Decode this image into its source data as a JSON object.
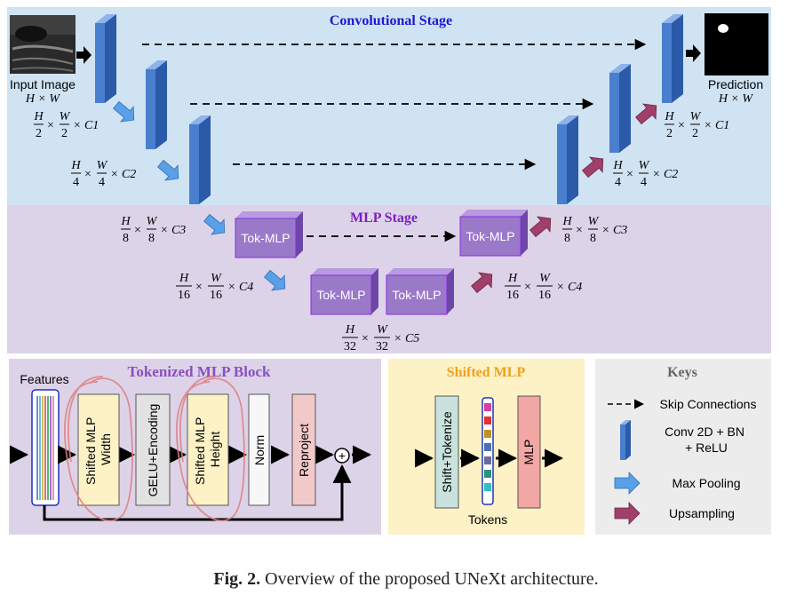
{
  "top": {
    "conv_stage_title": "Convolutional Stage",
    "mlp_stage_title": "MLP Stage",
    "input_label": "Input Image",
    "input_size": "H × W",
    "prediction_label": "Prediction",
    "prediction_size": "H × W",
    "tok_mlp_label": "Tok-MLP",
    "dims": {
      "enc1": [
        "H",
        "2",
        "W",
        "2",
        "× C1"
      ],
      "enc2": [
        "H",
        "4",
        "W",
        "4",
        "× C2"
      ],
      "enc3": [
        "H",
        "8",
        "W",
        "8",
        "× C3"
      ],
      "enc4": [
        "H",
        "16",
        "W",
        "16",
        "× C4"
      ],
      "bottleneck": [
        "H",
        "32",
        "W",
        "32",
        "× C5"
      ],
      "dec4": [
        "H",
        "16",
        "W",
        "16",
        "× C4"
      ],
      "dec3": [
        "H",
        "8",
        "W",
        "8",
        "× C3"
      ],
      "dec2": [
        "H",
        "4",
        "W",
        "4",
        "× C2"
      ],
      "dec1": [
        "H",
        "2",
        "W",
        "2",
        "× C1"
      ]
    }
  },
  "tokenized_block": {
    "title": "Tokenized MLP Block",
    "features_label": "Features",
    "blocks": [
      "Shifted MLP Width",
      "GELU+Encoding",
      "Shifted MLP Height",
      "Norm",
      "Reproject"
    ],
    "blocks_lines": [
      [
        "Shifted MLP",
        "Width"
      ],
      [
        "GELU+Encoding"
      ],
      [
        "Shifted MLP",
        "Height"
      ],
      [
        "Norm"
      ],
      [
        "Reproject"
      ]
    ],
    "sum_symbol": "+"
  },
  "shifted_mlp": {
    "title": "Shifted MLP",
    "shift_tokenize": "Shift+Tokenize",
    "mlp": "MLP",
    "tokens_label": "Tokens",
    "token_colors": [
      "#d63fa0",
      "#e03030",
      "#c09020",
      "#4a6fb5",
      "#6a6a9a",
      "#2f8f7f",
      "#2fc0c0"
    ]
  },
  "keys": {
    "title": "Keys",
    "skip": "Skip Connections",
    "conv": "Conv 2D + BN + ReLU",
    "conv_lines": [
      "Conv 2D + BN",
      "+ ReLU"
    ],
    "pool": "Max Pooling",
    "up": "Upsampling"
  },
  "caption": {
    "fig": "Fig. 2.",
    "text": "Overview of the proposed UNeXt architecture."
  },
  "colors": {
    "conv_bg": "#cfe3f3",
    "mlp_bg": "#ddd3e9",
    "block_bg": "#ddd3e9",
    "shifted_bg": "#fdf1c6",
    "keys_bg": "#ececec",
    "conv_block": "#4a7fd0",
    "tok_mlp": "#9b79c9",
    "pool_arrow": "#5aa0e8",
    "up_arrow": "#a0406a",
    "conv_title": "#1a1ad0",
    "mlp_title": "#7a20c0",
    "tok_title": "#8a4fc0",
    "shifted_title": "#f0a020",
    "keys_title": "#666666"
  }
}
